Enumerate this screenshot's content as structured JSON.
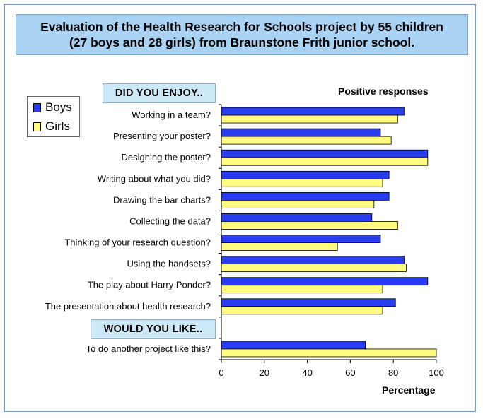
{
  "title_line1": "Evaluation of the Health Research for Schools project by 55 children",
  "title_line2": "(27 boys and 28 girls) from Braunstone Frith junior school.",
  "section_enjoy": "DID YOU ENJOY..",
  "section_like": "WOULD YOU LIKE..",
  "colors": {
    "boys": "#2a3cf0",
    "girls": "#fffb80",
    "title_bg": "#a9d2f3",
    "section_bg": "#cde8f6"
  },
  "chart_data": {
    "type": "bar",
    "orientation": "horizontal",
    "title": "Positive responses",
    "xlabel": "Percentage",
    "ylabel": "",
    "xlim": [
      0,
      100
    ],
    "ticks": [
      "0",
      "20",
      "40",
      "60",
      "80",
      "100"
    ],
    "legend_position": "top-left",
    "categories": [
      "Working in a team?",
      "Presenting your poster?",
      "Designing the poster?",
      "Writing about what you did?",
      "Drawing the bar charts?",
      "Collecting the data?",
      "Thinking of your research question?",
      "Using the handsets?",
      "The play about Harry Ponder?",
      "The presentation about health research?",
      "",
      "To do another project like this?"
    ],
    "series": [
      {
        "name": "Boys",
        "values": [
          85,
          74,
          96,
          78,
          78,
          70,
          74,
          85,
          96,
          81,
          null,
          67
        ]
      },
      {
        "name": "Girls",
        "values": [
          82,
          79,
          96,
          75,
          71,
          82,
          54,
          86,
          75,
          75,
          null,
          100
        ]
      }
    ]
  }
}
